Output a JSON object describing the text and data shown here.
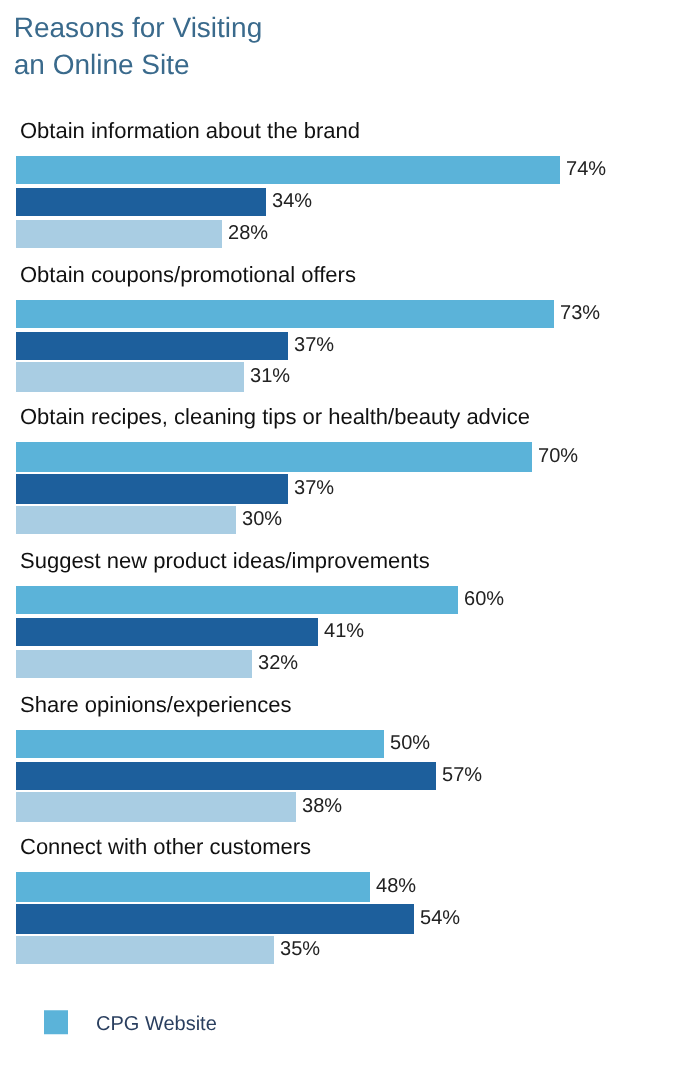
{
  "chart_data": {
    "type": "bar",
    "orientation": "horizontal",
    "title": "Reasons for Visiting\nan Online Site",
    "categories": [
      "Obtain information about the brand",
      "Obtain coupons/promotional offers",
      "Obtain recipes, cleaning tips or health/beauty advice",
      "Suggest new product ideas/improvements",
      "Share opinions/experiences",
      "Connect with other customers"
    ],
    "series": [
      {
        "name": "CPG Website",
        "color": "#5bb3d9",
        "values": [
          74,
          73,
          70,
          60,
          50,
          48
        ],
        "value_labels": [
          "74%",
          "73%",
          "70%",
          "60%",
          "50%",
          "48%"
        ]
      },
      {
        "color": "#1d5f9c",
        "values": [
          34,
          37,
          37,
          41,
          57,
          54
        ],
        "value_labels": [
          "34%",
          "37%",
          "37%",
          "41%",
          "57%",
          "54%"
        ]
      },
      {
        "color": "#a9cde3",
        "values": [
          28,
          31,
          30,
          32,
          38,
          35
        ],
        "value_labels": [
          "28%",
          "31%",
          "30%",
          "32%",
          "38%",
          "35%"
        ]
      }
    ],
    "legend": "bottom"
  }
}
